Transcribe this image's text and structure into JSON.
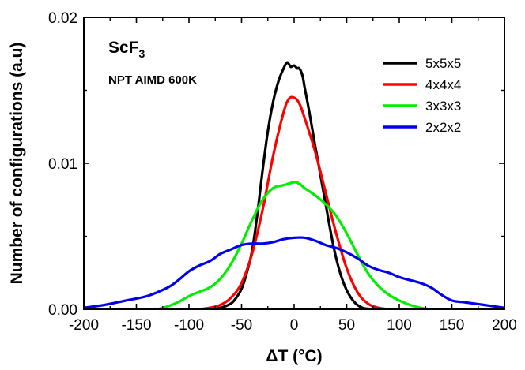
{
  "chart_data": {
    "type": "line",
    "title": "",
    "xlabel": "ΔT (°C)",
    "ylabel": "Number of configurations (a.u)",
    "xlim": [
      -200,
      200
    ],
    "ylim": [
      0,
      0.02
    ],
    "x_ticks": [
      -200,
      -150,
      -100,
      -50,
      0,
      50,
      100,
      150,
      200
    ],
    "x_tick_labels": [
      "-200",
      "-150",
      "-100",
      "-50",
      "0",
      "50",
      "100",
      "150",
      "200"
    ],
    "y_ticks": [
      0,
      0.01,
      0.02
    ],
    "y_tick_labels": [
      "0.00",
      "0.01",
      "0.02"
    ],
    "annotations": {
      "formula_main": "ScF",
      "formula_sub": "3",
      "method": "NPT AIMD 600K"
    },
    "legend_position": "top-right",
    "series": [
      {
        "name": "5x5x5",
        "color": "#000000",
        "x": [
          -80,
          -70,
          -60,
          -55,
          -50,
          -45,
          -40,
          -35,
          -30,
          -25,
          -20,
          -15,
          -10,
          -7,
          -5,
          -3,
          0,
          3,
          5,
          8,
          10,
          15,
          20,
          25,
          30,
          35,
          40,
          45,
          50,
          55,
          60,
          65,
          70,
          80
        ],
        "y": [
          0.0,
          0.0001,
          0.0004,
          0.0008,
          0.0014,
          0.0025,
          0.004,
          0.0065,
          0.0095,
          0.0122,
          0.0142,
          0.0156,
          0.0165,
          0.0169,
          0.0168,
          0.0166,
          0.0167,
          0.0165,
          0.0165,
          0.016,
          0.0152,
          0.0133,
          0.0112,
          0.0092,
          0.0072,
          0.0052,
          0.0035,
          0.0022,
          0.0013,
          0.0007,
          0.0003,
          0.0001,
          3e-05,
          0.0
        ]
      },
      {
        "name": "4x4x4",
        "color": "#ff0000",
        "x": [
          -90,
          -80,
          -70,
          -60,
          -50,
          -40,
          -30,
          -20,
          -10,
          -5,
          0,
          5,
          10,
          20,
          30,
          40,
          50,
          60,
          70,
          80,
          90
        ],
        "y": [
          0.0,
          0.0001,
          0.0003,
          0.0008,
          0.0018,
          0.0038,
          0.0068,
          0.0105,
          0.0135,
          0.0144,
          0.0145,
          0.0141,
          0.0131,
          0.0108,
          0.008,
          0.0052,
          0.0028,
          0.0012,
          0.0004,
          0.0001,
          0.0
        ]
      },
      {
        "name": "3x3x3",
        "color": "#00ee00",
        "x": [
          -130,
          -120,
          -110,
          -100,
          -90,
          -80,
          -70,
          -60,
          -50,
          -40,
          -30,
          -20,
          -10,
          0,
          5,
          10,
          20,
          30,
          40,
          50,
          60,
          70,
          80,
          90,
          100,
          110,
          120,
          130
        ],
        "y": [
          0.0,
          0.0002,
          0.0005,
          0.0009,
          0.0012,
          0.0015,
          0.0021,
          0.0031,
          0.0045,
          0.0061,
          0.0075,
          0.0083,
          0.0085,
          0.0087,
          0.0086,
          0.0083,
          0.0078,
          0.0072,
          0.0064,
          0.0052,
          0.0038,
          0.0025,
          0.0016,
          0.001,
          0.0006,
          0.0003,
          0.0001,
          0.0
        ]
      },
      {
        "name": "2x2x2",
        "color": "#0000ee",
        "x": [
          -200,
          -180,
          -160,
          -140,
          -120,
          -110,
          -100,
          -90,
          -80,
          -70,
          -60,
          -50,
          -40,
          -30,
          -20,
          -10,
          0,
          10,
          20,
          30,
          40,
          50,
          60,
          70,
          80,
          90,
          100,
          110,
          120,
          130,
          140,
          150,
          160,
          170,
          180,
          190,
          200
        ],
        "y": [
          0.0001,
          0.0003,
          0.0006,
          0.0009,
          0.0015,
          0.002,
          0.0026,
          0.003,
          0.0033,
          0.0038,
          0.0041,
          0.0044,
          0.0045,
          0.0045,
          0.0046,
          0.0048,
          0.0049,
          0.0049,
          0.0047,
          0.0044,
          0.0042,
          0.0039,
          0.0035,
          0.003,
          0.0027,
          0.0025,
          0.0022,
          0.002,
          0.0018,
          0.0015,
          0.001,
          0.0006,
          0.0005,
          0.0004,
          0.0003,
          0.0002,
          0.0001
        ]
      }
    ]
  }
}
